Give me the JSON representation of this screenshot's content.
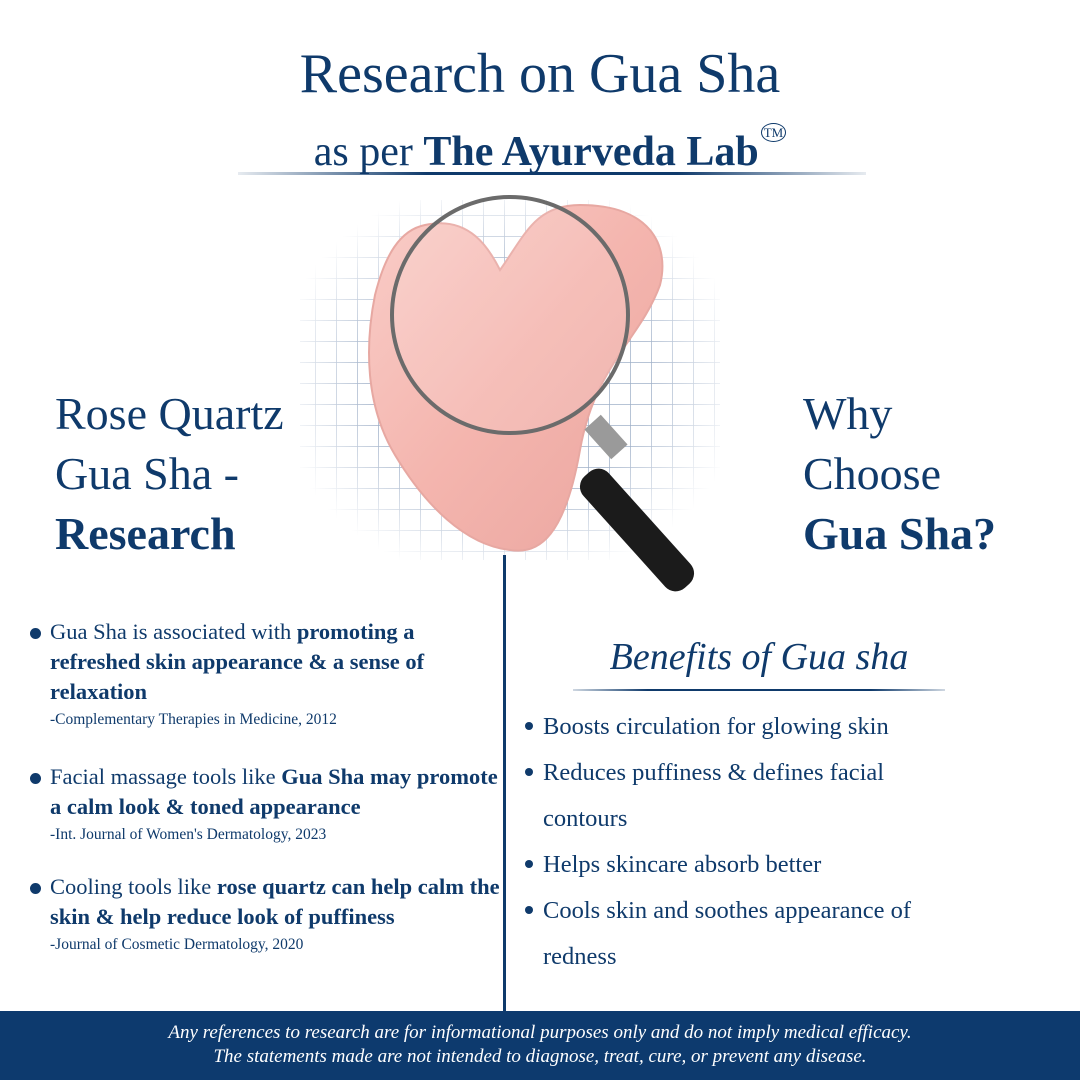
{
  "header": {
    "title": "Research on Gua Sha",
    "subtitle_prefix": "as per",
    "subtitle_brand": "The Ayurveda Lab",
    "trademark": "TM"
  },
  "left": {
    "heading_line1": "Rose Quartz",
    "heading_line2": "Gua Sha -",
    "heading_line3": "Research",
    "items": [
      {
        "plain": "Gua Sha is associated with ",
        "bold": "promoting a refreshed skin appearance & a sense of relaxation",
        "source": "-Complementary Therapies in Medicine, 2012"
      },
      {
        "plain": "Facial massage tools like ",
        "bold": "Gua Sha may promote a calm look & toned appearance",
        "source": "-Int. Journal of Women's Dermatology, 2023"
      },
      {
        "plain": "Cooling tools like ",
        "bold": "rose quartz can help calm the skin & help reduce look  of puffiness",
        "source": "-Journal of Cosmetic Dermatology, 2020"
      }
    ]
  },
  "right": {
    "heading_line1": "Why",
    "heading_line2": "Choose",
    "heading_line3": "Gua Sha?",
    "benefits_title": "Benefits of Gua sha",
    "benefits": [
      "Boosts circulation for glowing skin",
      "Reduces puffiness & defines facial contours",
      "Helps skincare absorb better",
      "Cools skin and soothes appearance of redness"
    ]
  },
  "footer": {
    "line1": "Any references to research are for informational purposes only and do not imply medical efficacy.",
    "line2": "The statements made are not intended to diagnose, treat, cure, or prevent any disease."
  },
  "colors": {
    "navy": "#0f3a6b",
    "footer_bg": "#0d3a6e",
    "rose_quartz": "#f4b9b4"
  },
  "icons": [
    "gua-sha-stone-image",
    "magnifying-glass-icon",
    "grid-background"
  ]
}
